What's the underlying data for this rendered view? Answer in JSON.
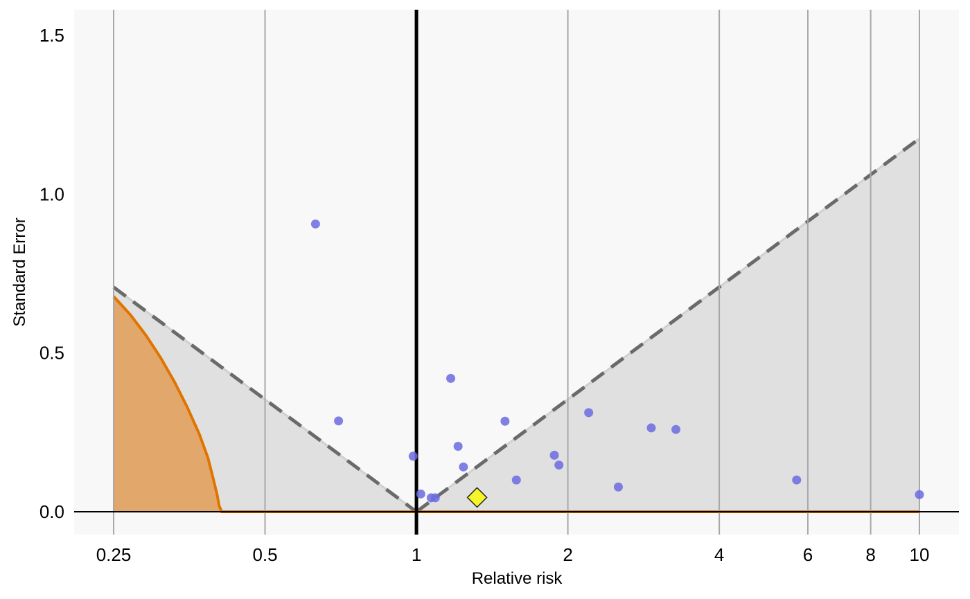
{
  "chart_data": {
    "type": "scatter",
    "title": "",
    "xlabel": "Relative risk",
    "ylabel": "Standard Error",
    "x_scale": "log",
    "x_ticks": [
      0.25,
      0.5,
      1,
      2,
      4,
      6,
      8,
      10
    ],
    "x_tick_labels": [
      "0.25",
      "0.5",
      "1",
      "2",
      "4",
      "6",
      "8",
      "10"
    ],
    "xlim": [
      0.215,
      12.0
    ],
    "y_ticks": [
      0.0,
      0.5,
      1.0,
      1.5
    ],
    "y_tick_labels": [
      "0.0",
      "0.5",
      "1.0",
      "1.5"
    ],
    "ylim": [
      -0.075,
      1.58
    ],
    "grid": "vertical lines at x ticks",
    "colors": {
      "panel_background": "#f8f8f8",
      "funnel_fill": "#e0e0e0",
      "funnel_line": "#6a6a6a",
      "gridline": "#a8a8a8",
      "reference_line": "#000000",
      "study_points": "#6b6be0",
      "pooled_estimate": "#f5f52a",
      "region_fill": "#e2a86b",
      "region_line": "#e07400"
    },
    "reference_line_x": 1,
    "funnel": {
      "apex_x": 1,
      "left_edge": {
        "x": 0.25,
        "se": 0.707
      },
      "right_edge": {
        "x": 10,
        "se": 1.175
      }
    },
    "shaded_region_curve": {
      "x": [
        0.25,
        0.27,
        0.29,
        0.31,
        0.33,
        0.35,
        0.37,
        0.385,
        0.395,
        0.402,
        0.405,
        0.41
      ],
      "se": [
        0.678,
        0.62,
        0.555,
        0.485,
        0.41,
        0.33,
        0.245,
        0.17,
        0.1,
        0.05,
        0.02,
        0.0
      ]
    },
    "series": [
      {
        "values": [
          {
            "x": 0.63,
            "se": 0.906
          },
          {
            "x": 0.7,
            "se": 0.286
          },
          {
            "x": 0.985,
            "se": 0.175
          },
          {
            "x": 1.02,
            "se": 0.056
          },
          {
            "x": 1.07,
            "se": 0.044
          },
          {
            "x": 1.09,
            "se": 0.044
          },
          {
            "x": 1.17,
            "se": 0.42
          },
          {
            "x": 1.21,
            "se": 0.206
          },
          {
            "x": 1.24,
            "se": 0.141
          },
          {
            "x": 1.5,
            "se": 0.285
          },
          {
            "x": 1.58,
            "se": 0.1
          },
          {
            "x": 1.88,
            "se": 0.178
          },
          {
            "x": 1.92,
            "se": 0.147
          },
          {
            "x": 2.2,
            "se": 0.312
          },
          {
            "x": 2.52,
            "se": 0.078
          },
          {
            "x": 2.93,
            "se": 0.264
          },
          {
            "x": 3.28,
            "se": 0.259
          },
          {
            "x": 5.7,
            "se": 0.1
          },
          {
            "x": 10.0,
            "se": 0.054
          }
        ]
      }
    ],
    "pooled_estimate": {
      "x": 1.32,
      "se": 0.045
    }
  }
}
